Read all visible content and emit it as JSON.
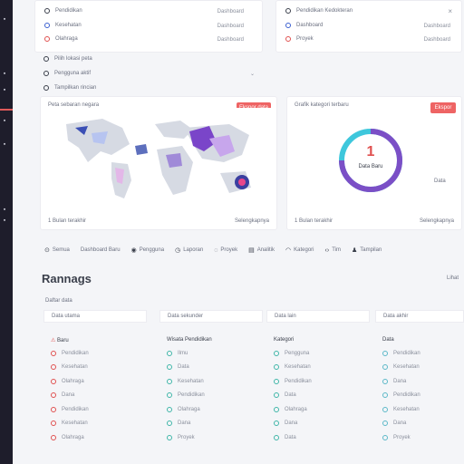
{
  "sidebar": {
    "icons": [
      "home-icon",
      "grid-icon",
      "chart-icon",
      "bookmark-icon",
      "list-icon",
      "user-icon",
      "settings-icon"
    ]
  },
  "top_left_list": [
    "Pendidikan",
    "Kesehatan",
    "Olahraga"
  ],
  "top_left_values": [
    "Dashboard",
    "Dashboard",
    "Dashboard"
  ],
  "top_right_list": [
    "Pendidikan Kedokteran",
    "Dashboard",
    "Proyek"
  ],
  "top_right_values": [
    "",
    "Dashboard",
    "Dashboard"
  ],
  "top_right_close": "×",
  "filter_rows": [
    "Pilih lokasi peta",
    "Pengguna aktif",
    "Tampilkan rincian"
  ],
  "map_card": {
    "title": "Peta sebaran negara",
    "button": "Ekspor data",
    "footer_left": "1 Bulan terakhir",
    "footer_right": "Selengkapnya"
  },
  "donut_card": {
    "title": "Grafik kategori terbaru",
    "button": "Ekspor",
    "center_number": "1",
    "center_label": "Data Baru",
    "side_label": "Data",
    "footer_left": "1 Bulan terakhir",
    "footer_right": "Selengkapnya"
  },
  "tabs": [
    "Semua",
    "Dashboard Baru",
    "Pengguna",
    "Laporan",
    "Proyek",
    "Analitik",
    "Kategori",
    "Tim",
    "Tampilan"
  ],
  "page_title": "Rannags",
  "page_action": "Lihat",
  "section_label": "Daftar data",
  "columns": [
    {
      "header": "Data utama",
      "title": "Baru",
      "items": [
        "Pendidikan",
        "Kesehatan",
        "Olahraga",
        "Dana",
        "Pendidikan",
        "Kesehatan",
        "Olahraga"
      ]
    },
    {
      "header": "Data sekunder",
      "title": "Wisata Pendidikan",
      "items": [
        "Ilmu",
        "Data",
        "Kesehatan",
        "Pendidikan",
        "Olahraga",
        "Dana",
        "Proyek"
      ]
    },
    {
      "header": "Data lain",
      "title": "Kategori",
      "items": [
        "Pengguna",
        "Kesehatan",
        "Pendidikan",
        "Data",
        "Olahraga",
        "Dana",
        "Data"
      ]
    },
    {
      "header": "Data akhir",
      "title": "Data",
      "items": [
        "Pendidikan",
        "Kesehatan",
        "Dana",
        "Pendidikan",
        "Kesehatan",
        "Dana",
        "Proyek"
      ]
    }
  ],
  "colors": {
    "accent": "#ee6464",
    "sidebar": "#1e1d2b",
    "donut_purple": "#7b4fc6",
    "donut_cyan": "#3ec7dc"
  }
}
